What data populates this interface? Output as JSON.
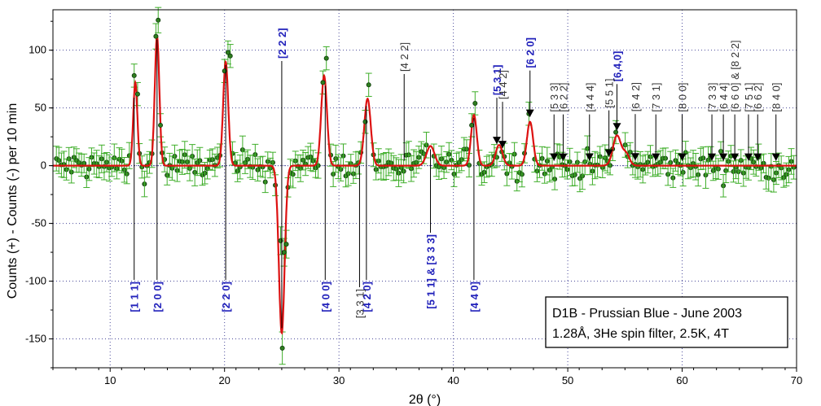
{
  "chart_data": {
    "type": "scatter",
    "title": "",
    "xlabel": "2θ (°)",
    "ylabel": "Counts (+) - Counts (-) per 10 min",
    "xlim": [
      5,
      70
    ],
    "ylim": [
      -175,
      135
    ],
    "x_ticks": [
      10,
      20,
      30,
      40,
      50,
      60,
      70
    ],
    "y_ticks": [
      -150,
      -100,
      -50,
      0,
      50,
      100
    ],
    "grid": true,
    "legend": {
      "position": "bottom-right",
      "lines": [
        "D1B - Prussian Blue - June 2003",
        "1.28Å, 3He spin filter, 2.5K, 4T"
      ]
    },
    "colors": {
      "data_points": "#2e7d1e",
      "error_bars": "#3fae2a",
      "fit": "#dd1111",
      "label_observed": "#2222bb",
      "label_extra": "#333333"
    },
    "fit_baseline": 0,
    "fit_peaks": [
      {
        "x": 12.2,
        "amp": 72,
        "width": 0.18
      },
      {
        "x": 14.1,
        "amp": 112,
        "width": 0.2
      },
      {
        "x": 20.1,
        "amp": 90,
        "width": 0.22
      },
      {
        "x": 25.0,
        "amp": -145,
        "width": 0.25
      },
      {
        "x": 28.7,
        "amp": 78,
        "width": 0.25
      },
      {
        "x": 32.5,
        "amp": 58,
        "width": 0.28
      },
      {
        "x": 38.0,
        "amp": 17,
        "width": 0.35
      },
      {
        "x": 41.8,
        "amp": 44,
        "width": 0.25
      },
      {
        "x": 44.0,
        "amp": 18,
        "width": 0.3
      },
      {
        "x": 46.7,
        "amp": 38,
        "width": 0.27
      },
      {
        "x": 54.3,
        "amp": 26,
        "width": 0.35
      },
      {
        "x": 55.1,
        "amp": 10,
        "width": 0.3
      }
    ],
    "observed_points": [
      {
        "x": 12.1,
        "y": 78,
        "err": 10
      },
      {
        "x": 12.4,
        "y": 62,
        "err": 10
      },
      {
        "x": 14.0,
        "y": 112,
        "err": 11
      },
      {
        "x": 14.2,
        "y": 126,
        "err": 11
      },
      {
        "x": 14.4,
        "y": 35,
        "err": 10
      },
      {
        "x": 20.0,
        "y": 82,
        "err": 10
      },
      {
        "x": 20.3,
        "y": 98,
        "err": 10
      },
      {
        "x": 20.5,
        "y": 95,
        "err": 10
      },
      {
        "x": 24.9,
        "y": -65,
        "err": 12
      },
      {
        "x": 25.05,
        "y": -158,
        "err": 14
      },
      {
        "x": 25.2,
        "y": -75,
        "err": 12
      },
      {
        "x": 25.4,
        "y": -68,
        "err": 12
      },
      {
        "x": 28.6,
        "y": 72,
        "err": 10
      },
      {
        "x": 28.9,
        "y": 93,
        "err": 10
      },
      {
        "x": 32.3,
        "y": 38,
        "err": 10
      },
      {
        "x": 32.6,
        "y": 70,
        "err": 10
      },
      {
        "x": 41.6,
        "y": 35,
        "err": 10
      },
      {
        "x": 41.9,
        "y": 54,
        "err": 10
      },
      {
        "x": 46.6,
        "y": 45,
        "err": 10
      },
      {
        "x": 54.2,
        "y": 29,
        "err": 10
      }
    ],
    "noise_points_count_note": "",
    "labels_observed": [
      {
        "text": "[1 1 1]",
        "x": 12.1
      },
      {
        "text": "[2 0 0]",
        "x": 14.1
      },
      {
        "text": "[2 2 0]",
        "x": 20.1
      },
      {
        "text": "[2 2 2]",
        "x": 25.0
      },
      {
        "text": "[4 0 0]",
        "x": 28.8
      },
      {
        "text": "[4 2 0]",
        "x": 32.4
      },
      {
        "text": "[5 1 1] & [3 3 3]",
        "x": 38.0
      },
      {
        "text": "[4 4 0]",
        "x": 41.8
      },
      {
        "text": "[5 3 1]",
        "x": 43.8
      },
      {
        "text": "[6 2 0]",
        "x": 46.7
      },
      {
        "text": "[6,4,0]",
        "x": 54.3
      }
    ],
    "labels_extra": [
      {
        "text": "[3 3 1]",
        "x": 31.8
      },
      {
        "text": "[4 2 2]",
        "x": 35.7
      },
      {
        "text": "[4 4 2]",
        "x": 44.3
      },
      {
        "text": "[5 3 3]",
        "x": 48.8
      },
      {
        "text": "[6 2 2]",
        "x": 49.6
      },
      {
        "text": "[4 4 4]",
        "x": 51.9
      },
      {
        "text": "[5 5 1]",
        "x": 53.6
      },
      {
        "text": "[6 4 2]",
        "x": 55.9
      },
      {
        "text": "[7 3 1]",
        "x": 57.7
      },
      {
        "text": "[8 0 0]",
        "x": 60.0
      },
      {
        "text": "[7 3 3]",
        "x": 62.6
      },
      {
        "text": "[6 4 4]",
        "x": 63.6
      },
      {
        "text": "[6 6 0] & [8 2 2]",
        "x": 64.6
      },
      {
        "text": "[7 5 1]",
        "x": 65.8
      },
      {
        "text": "[6 6 2]",
        "x": 66.6
      },
      {
        "text": "[8 4 0]",
        "x": 68.2
      }
    ]
  }
}
